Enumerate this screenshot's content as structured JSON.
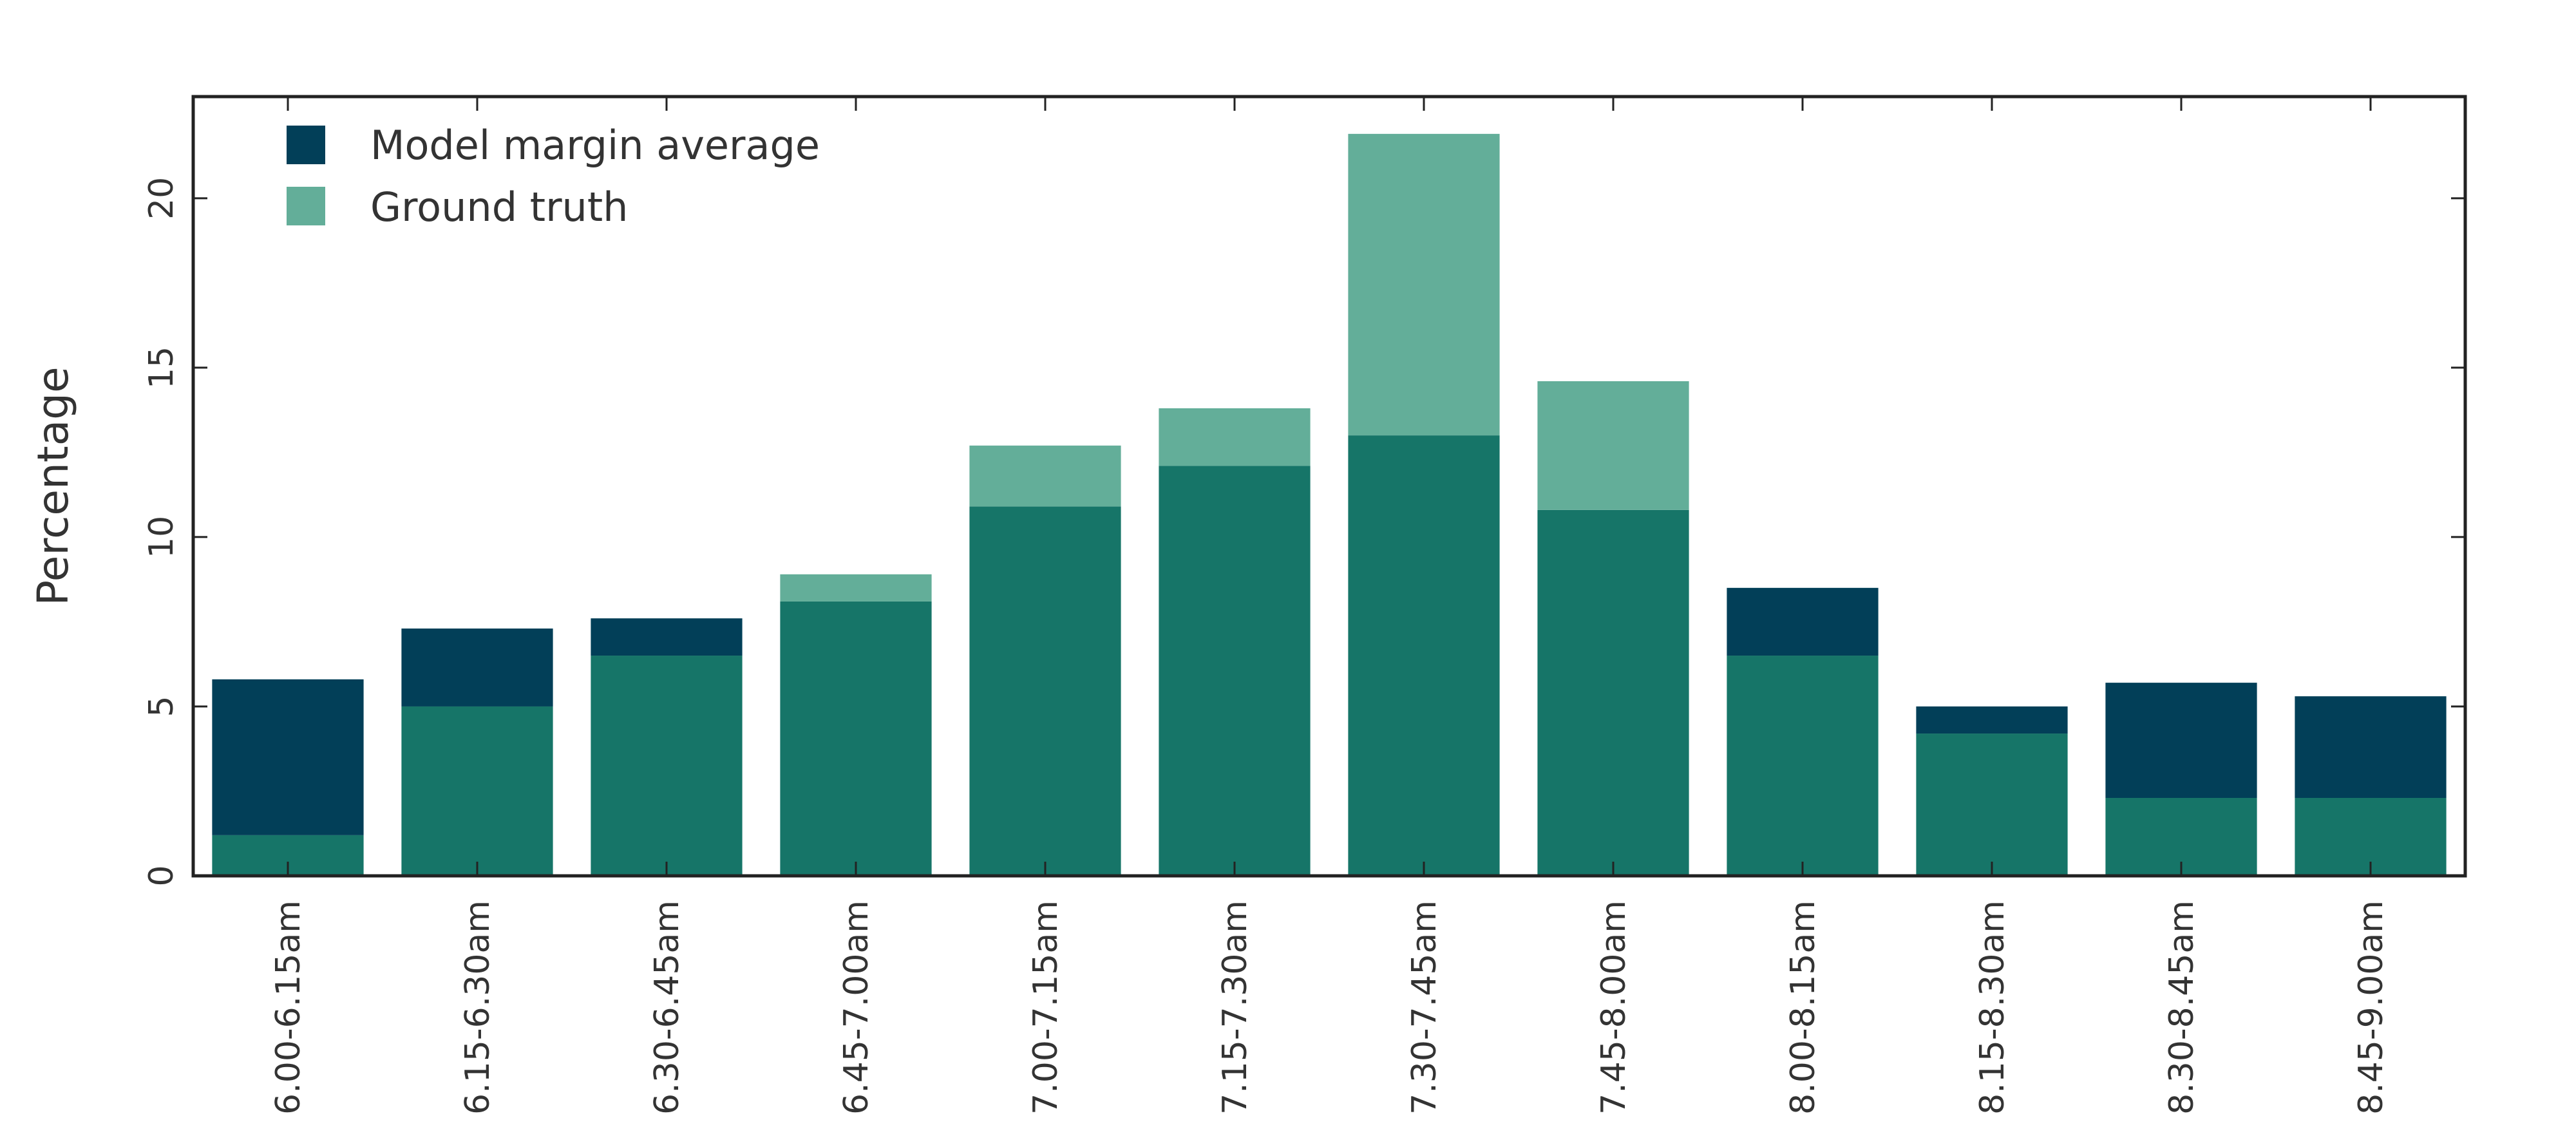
{
  "chart_data": {
    "type": "bar",
    "categories": [
      "6.00-6.15am",
      "6.15-6.30am",
      "6.30-6.45am",
      "6.45-7.00am",
      "7.00-7.15am",
      "7.15-7.30am",
      "7.30-7.45am",
      "7.45-8.00am",
      "8.00-8.15am",
      "8.15-8.30am",
      "8.30-8.45am",
      "8.45-9.00am"
    ],
    "series": [
      {
        "name": "Model margin average",
        "values": [
          5.8,
          7.3,
          7.6,
          8.1,
          10.9,
          12.1,
          13.0,
          10.8,
          8.5,
          5.0,
          5.7,
          5.3
        ]
      },
      {
        "name": "Ground truth",
        "values": [
          1.2,
          5.0,
          6.5,
          8.9,
          12.7,
          13.8,
          21.9,
          14.6,
          6.5,
          4.2,
          2.3,
          2.3
        ]
      }
    ],
    "xlabel": "",
    "ylabel": "Percentage",
    "ylim": [
      0,
      23
    ],
    "yticks": [
      0,
      5,
      10,
      15,
      20
    ],
    "grid": false,
    "legend_position": "top-left",
    "colors": {
      "model_only": "#023f58",
      "ground_truth_only": "#63ae99",
      "overlap": "#167568",
      "axis": "#222222"
    }
  }
}
